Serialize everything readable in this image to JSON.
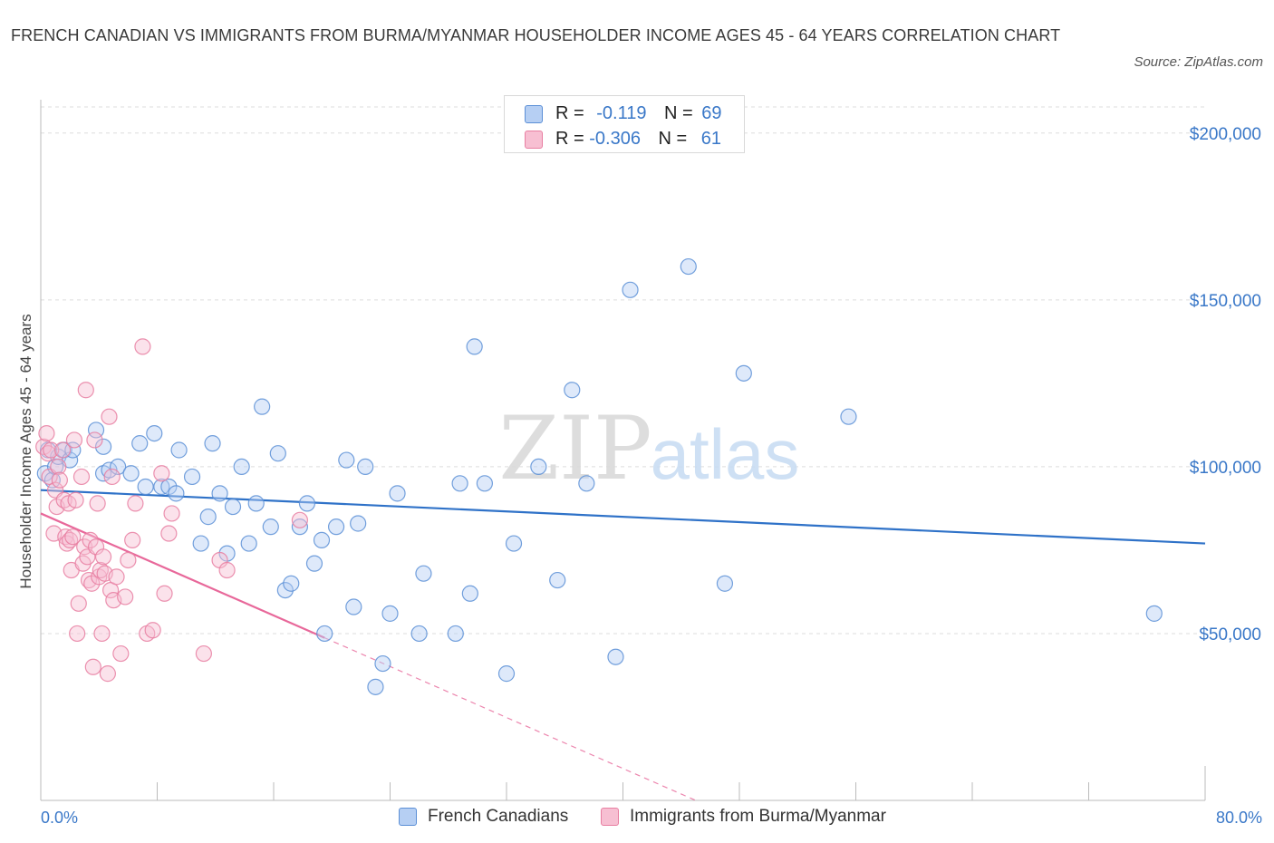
{
  "header": {
    "title": "FRENCH CANADIAN VS IMMIGRANTS FROM BURMA/MYANMAR HOUSEHOLDER INCOME AGES 45 - 64 YEARS CORRELATION CHART",
    "source": "Source: ZipAtlas.com"
  },
  "watermark": {
    "zip": "ZIP",
    "atlas": "atlas"
  },
  "legend": {
    "r_label": "R =",
    "n_label": "N =",
    "rows": [
      {
        "r": "-0.119",
        "n": "69"
      },
      {
        "r": "-0.306",
        "n": "61"
      }
    ]
  },
  "colors": {
    "series1": "#5b8fd6",
    "series1_fill": "#b6cff3",
    "series2": "#e87ea1",
    "series2_fill": "#f7bfd2",
    "trend1": "#2f72c8",
    "trend2": "#e8689a",
    "axis_text": "#3a78c8",
    "grid": "#dddddd"
  },
  "chart_data": {
    "type": "scatter",
    "xlabel": "",
    "ylabel": "Householder Income Ages 45 - 64 years",
    "xlim": [
      0,
      80
    ],
    "ylim": [
      0,
      210000
    ],
    "x_tick_labels": [
      "0.0%",
      "80.0%"
    ],
    "y_ticks": [
      50000,
      100000,
      150000,
      200000
    ],
    "y_tick_labels": [
      "$50,000",
      "$100,000",
      "$150,000",
      "$200,000"
    ],
    "grid": true,
    "legend_position": "top-center",
    "series": [
      {
        "name": "French Canadians",
        "trend": {
          "x0": 0,
          "y0": 93000,
          "x1": 80,
          "y1": 77000,
          "dashed_from": null
        },
        "points": [
          [
            0.3,
            98000
          ],
          [
            0.5,
            105000
          ],
          [
            0.8,
            96000
          ],
          [
            1.0,
            100000
          ],
          [
            1.2,
            103000
          ],
          [
            1.6,
            105000
          ],
          [
            2.0,
            102000
          ],
          [
            2.2,
            105000
          ],
          [
            3.8,
            111000
          ],
          [
            4.3,
            106000
          ],
          [
            4.3,
            98000
          ],
          [
            4.7,
            99000
          ],
          [
            5.3,
            100000
          ],
          [
            6.2,
            98000
          ],
          [
            6.8,
            107000
          ],
          [
            7.2,
            94000
          ],
          [
            7.8,
            110000
          ],
          [
            8.3,
            94000
          ],
          [
            8.8,
            94000
          ],
          [
            9.3,
            92000
          ],
          [
            9.5,
            105000
          ],
          [
            10.4,
            97000
          ],
          [
            11.0,
            77000
          ],
          [
            11.5,
            85000
          ],
          [
            11.8,
            107000
          ],
          [
            12.3,
            92000
          ],
          [
            12.8,
            74000
          ],
          [
            13.2,
            88000
          ],
          [
            13.8,
            100000
          ],
          [
            14.3,
            77000
          ],
          [
            14.8,
            89000
          ],
          [
            15.2,
            118000
          ],
          [
            15.8,
            82000
          ],
          [
            16.3,
            104000
          ],
          [
            16.8,
            63000
          ],
          [
            17.2,
            65000
          ],
          [
            17.8,
            82000
          ],
          [
            18.3,
            89000
          ],
          [
            18.8,
            71000
          ],
          [
            19.3,
            78000
          ],
          [
            19.5,
            50000
          ],
          [
            20.3,
            82000
          ],
          [
            21.0,
            102000
          ],
          [
            21.5,
            58000
          ],
          [
            21.8,
            83000
          ],
          [
            22.3,
            100000
          ],
          [
            23.0,
            34000
          ],
          [
            23.5,
            41000
          ],
          [
            24.0,
            56000
          ],
          [
            24.5,
            92000
          ],
          [
            26.0,
            50000
          ],
          [
            26.3,
            68000
          ],
          [
            28.5,
            50000
          ],
          [
            28.8,
            95000
          ],
          [
            29.5,
            62000
          ],
          [
            29.8,
            136000
          ],
          [
            30.5,
            95000
          ],
          [
            32.0,
            38000
          ],
          [
            32.5,
            77000
          ],
          [
            34.2,
            100000
          ],
          [
            35.5,
            66000
          ],
          [
            36.5,
            123000
          ],
          [
            37.5,
            95000
          ],
          [
            39.5,
            43000
          ],
          [
            40.5,
            153000
          ],
          [
            44.5,
            160000
          ],
          [
            47.0,
            65000
          ],
          [
            48.3,
            128000
          ],
          [
            55.5,
            115000
          ],
          [
            76.5,
            56000
          ]
        ]
      },
      {
        "name": "Immigrants from Burma/Myanmar",
        "trend": {
          "x0": 0,
          "y0": 86000,
          "x1": 45,
          "y1": 0,
          "solid_to_x": 19.5
        },
        "points": [
          [
            0.2,
            106000
          ],
          [
            0.4,
            110000
          ],
          [
            0.5,
            104000
          ],
          [
            0.6,
            97000
          ],
          [
            0.7,
            105000
          ],
          [
            0.9,
            80000
          ],
          [
            1.0,
            93000
          ],
          [
            1.1,
            88000
          ],
          [
            1.2,
            100000
          ],
          [
            1.3,
            96000
          ],
          [
            1.5,
            105000
          ],
          [
            1.6,
            90000
          ],
          [
            1.7,
            79000
          ],
          [
            1.8,
            77000
          ],
          [
            1.9,
            89000
          ],
          [
            2.0,
            78000
          ],
          [
            2.1,
            69000
          ],
          [
            2.2,
            79000
          ],
          [
            2.3,
            108000
          ],
          [
            2.4,
            90000
          ],
          [
            2.5,
            50000
          ],
          [
            2.6,
            59000
          ],
          [
            2.8,
            97000
          ],
          [
            2.9,
            71000
          ],
          [
            3.0,
            76000
          ],
          [
            3.1,
            123000
          ],
          [
            3.2,
            73000
          ],
          [
            3.3,
            66000
          ],
          [
            3.4,
            78000
          ],
          [
            3.5,
            65000
          ],
          [
            3.6,
            40000
          ],
          [
            3.7,
            108000
          ],
          [
            3.8,
            76000
          ],
          [
            3.9,
            89000
          ],
          [
            4.0,
            67000
          ],
          [
            4.1,
            69000
          ],
          [
            4.2,
            50000
          ],
          [
            4.3,
            73000
          ],
          [
            4.4,
            68000
          ],
          [
            4.6,
            38000
          ],
          [
            4.7,
            115000
          ],
          [
            4.8,
            63000
          ],
          [
            4.9,
            97000
          ],
          [
            5.0,
            60000
          ],
          [
            5.2,
            67000
          ],
          [
            5.5,
            44000
          ],
          [
            5.8,
            61000
          ],
          [
            6.0,
            72000
          ],
          [
            6.3,
            78000
          ],
          [
            6.5,
            89000
          ],
          [
            7.0,
            136000
          ],
          [
            7.3,
            50000
          ],
          [
            7.7,
            51000
          ],
          [
            8.3,
            98000
          ],
          [
            8.5,
            62000
          ],
          [
            8.8,
            80000
          ],
          [
            9.0,
            86000
          ],
          [
            11.2,
            44000
          ],
          [
            12.3,
            72000
          ],
          [
            12.8,
            69000
          ],
          [
            17.8,
            84000
          ]
        ]
      }
    ]
  },
  "bottom_legend": [
    "French Canadians",
    "Immigrants from Burma/Myanmar"
  ]
}
